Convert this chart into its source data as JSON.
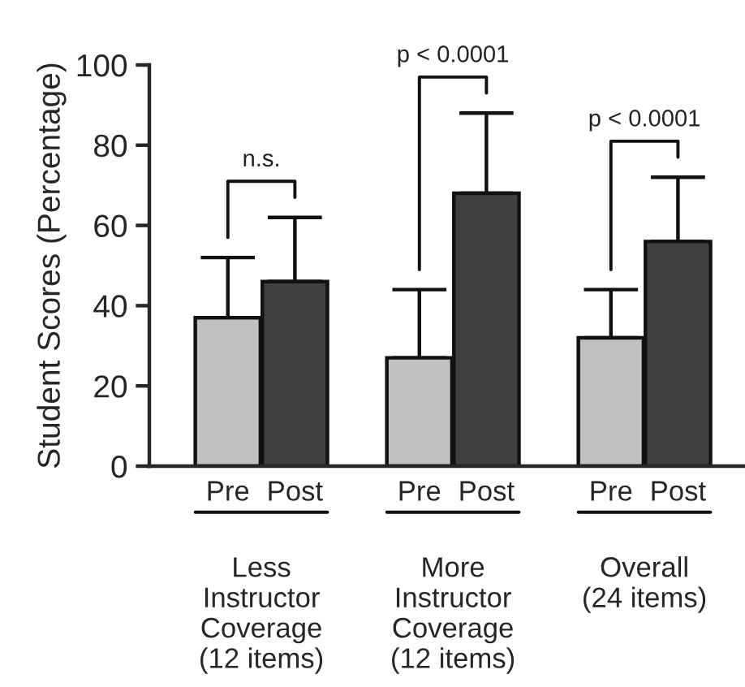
{
  "chart_data": {
    "type": "bar",
    "ylabel": "Student Scores (Percentage)",
    "categories": [
      "Less\nInstructor\nCoverage\n(12 items)",
      "More\nInstructor\nCoverage\n(12 items)",
      "Overall\n(24 items)"
    ],
    "series": [
      {
        "name": "Pre",
        "color": "#c0c0c0",
        "values": [
          37,
          27,
          32
        ],
        "errors": [
          [
            37,
            52
          ],
          [
            27,
            44
          ],
          [
            32,
            44
          ]
        ]
      },
      {
        "name": "Post",
        "color": "#404040",
        "values": [
          46,
          68,
          56
        ],
        "errors": [
          [
            46,
            62
          ],
          [
            68,
            88
          ],
          [
            56,
            72
          ]
        ]
      }
    ],
    "ylim": [
      0,
      100
    ],
    "yticks": [
      0,
      20,
      40,
      60,
      80,
      100
    ],
    "grid": false,
    "legend": false,
    "annotations": [
      "n.s.",
      "p < 0.0001",
      "p < 0.0001"
    ]
  }
}
